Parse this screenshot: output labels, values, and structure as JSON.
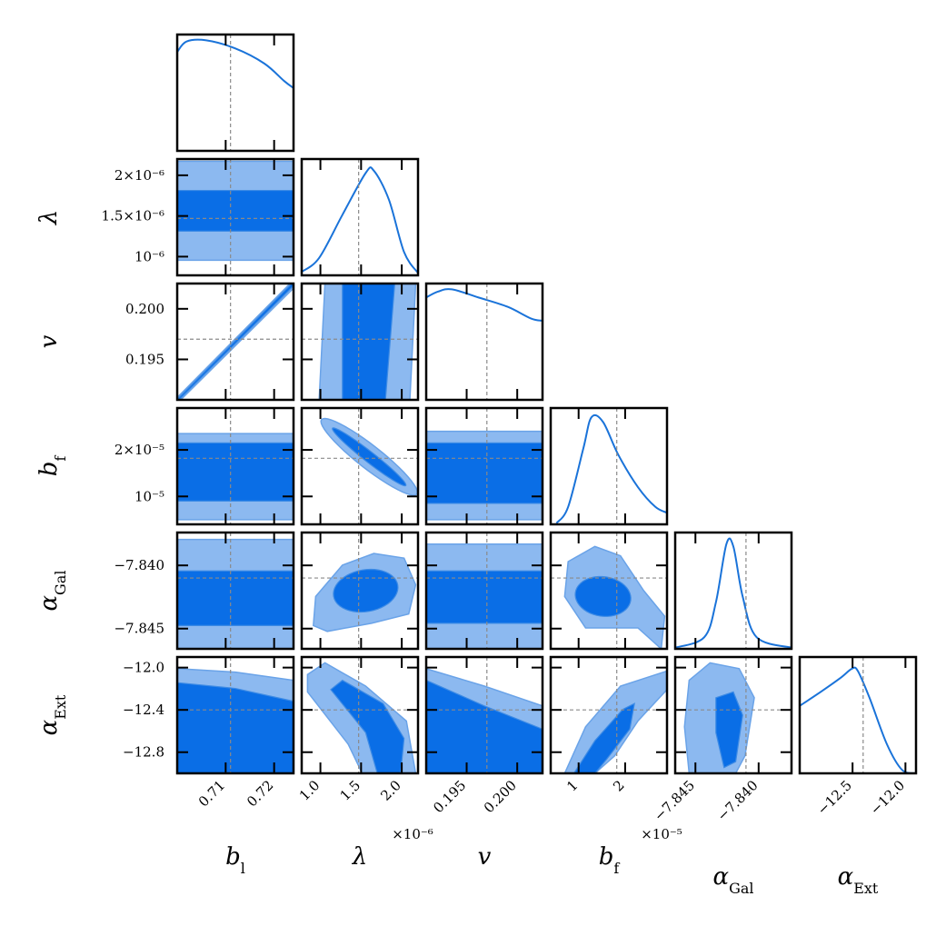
{
  "chart_data": {
    "type": "corner",
    "parameters": [
      {
        "name": "b_l",
        "label_main": "b",
        "label_sub": "l",
        "truth": 0.711,
        "range": [
          0.7,
          0.724
        ],
        "ticks": [
          0.71,
          0.72
        ],
        "tick_labels": [
          "0.71",
          "0.72"
        ],
        "exp_label": ""
      },
      {
        "name": "lambda",
        "label_main": "λ",
        "label_sub": "",
        "truth": 1.47e-06,
        "range": [
          7.7e-07,
          2.2e-06
        ],
        "ticks": [
          1e-06,
          1.5e-06,
          2e-06
        ],
        "tick_labels": [
          "1.0",
          "1.5",
          "2.0"
        ],
        "y_tick_labels": [
          "10⁻⁶",
          "1.5×10⁻⁶",
          "2×10⁻⁶"
        ],
        "exp_label": "×10⁻⁶"
      },
      {
        "name": "v",
        "label_main": "v",
        "label_sub": "",
        "truth": 0.197,
        "range": [
          0.191,
          0.2025
        ],
        "ticks": [
          0.195,
          0.2
        ],
        "tick_labels": [
          "0.195",
          "0.200"
        ],
        "exp_label": ""
      },
      {
        "name": "b_f",
        "label_main": "b",
        "label_sub": "f",
        "truth": 1.82e-05,
        "range": [
          4e-06,
          2.9e-05
        ],
        "ticks": [
          1e-05,
          2e-05
        ],
        "tick_labels": [
          "1",
          "2"
        ],
        "y_tick_labels": [
          "10⁻⁵",
          "2×10⁻⁵"
        ],
        "exp_label": "×10⁻⁵"
      },
      {
        "name": "alpha_Gal",
        "label_main": "α",
        "label_sub": "Gal",
        "truth": -7.841,
        "range": [
          -7.8466,
          -7.8374
        ],
        "ticks": [
          -7.845,
          -7.84
        ],
        "tick_labels": [
          "−7.845",
          "−7.840"
        ],
        "exp_label": ""
      },
      {
        "name": "alpha_Ext",
        "label_main": "α",
        "label_sub": "Ext",
        "truth": -12.4,
        "range": [
          -13.0,
          -11.9
        ],
        "ticks": [
          -12.8,
          -12.4,
          -12.0
        ],
        "tick_labels": [
          "−12.8",
          "−12.4",
          "−12.0"
        ],
        "x_ticks": [
          -12.5,
          -12.0
        ],
        "x_tick_labels": [
          "−12.5",
          "−12.0"
        ],
        "exp_label": ""
      }
    ],
    "contour_levels": [
      "68%",
      "95%"
    ],
    "colors": {
      "inner": "#0a6ee6",
      "outer": "#8cb9f0",
      "line": "#1a73d9",
      "truth": "#8a8a8a",
      "frame": "#000000"
    }
  }
}
